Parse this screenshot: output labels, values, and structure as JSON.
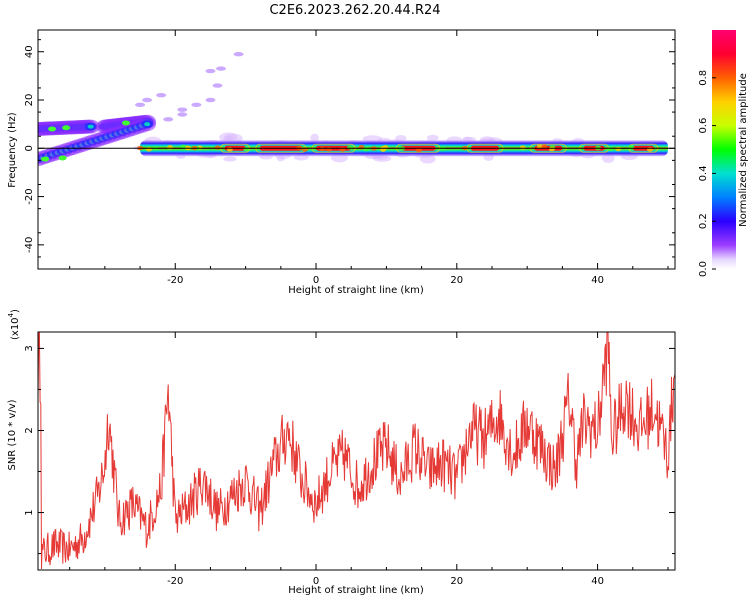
{
  "title": "C2E6.2023.262.20.44.R24",
  "colors": {
    "snr_line": "#e53935",
    "frame": "#000000"
  },
  "chart_data": [
    {
      "type": "heatmap",
      "xlabel": "Height of straight line (km)",
      "ylabel": "Frequency (Hz)",
      "xlim": [
        -39.5,
        51
      ],
      "ylim": [
        -50,
        49
      ],
      "xticks": [
        -20,
        0,
        20,
        40
      ],
      "yticks": [
        -40,
        -20,
        0,
        20,
        40
      ],
      "grid": false,
      "zero_line": 0,
      "colorbar": {
        "label": "Normalized spectral amplitude",
        "range": [
          0.0,
          1.0
        ],
        "ticks": [
          "0.0",
          "0.2",
          "0.4",
          "0.6",
          "0.8"
        ],
        "tick_values": [
          0.0,
          0.2,
          0.4,
          0.6,
          0.8
        ],
        "colormap": "rainbow"
      },
      "features": [
        {
          "name": "main-band",
          "x": [
            -25,
            50
          ],
          "freq": 0,
          "amplitude": 0.9
        },
        {
          "name": "upper-branch",
          "x": [
            -39.5,
            -24
          ],
          "freq": [
            7,
            11
          ],
          "amplitude": 0.45
        },
        {
          "name": "lower-branch",
          "x": [
            -39.5,
            -24
          ],
          "freq": [
            -5,
            10
          ],
          "amplitude": 0.45
        },
        {
          "name": "faint-streak",
          "x": [
            -22,
            -14
          ],
          "freq": [
            20,
            35
          ],
          "amplitude": 0.1
        }
      ]
    },
    {
      "type": "line",
      "xlabel": "Height of straight line (km)",
      "ylabel": "SNR (10 * v/v)",
      "y_multiplier": "(x10",
      "y_multiplier_exp": "4",
      "y_multiplier_close": ")",
      "xlim": [
        -39.5,
        51
      ],
      "ylim": [
        0.3,
        3.2
      ],
      "xticks": [
        -20,
        0,
        20,
        40
      ],
      "yticks": [
        1,
        2,
        3
      ],
      "grid": false,
      "series": [
        {
          "x": [
            -39,
            -37,
            -35,
            -33,
            -31,
            -30,
            -29.5,
            -28,
            -26,
            -24,
            -22,
            -21,
            -20,
            -18,
            -16,
            -14,
            -12,
            -10,
            -8,
            -6,
            -4,
            -2,
            0,
            2,
            4,
            6,
            8,
            10,
            12,
            14,
            16,
            18,
            20,
            22,
            24,
            26,
            28,
            30,
            32,
            34,
            36,
            37,
            38,
            40,
            41.5,
            42,
            44,
            46,
            48,
            50,
            51
          ],
          "y": [
            0.5,
            0.6,
            0.55,
            0.7,
            1.2,
            1.6,
            2.2,
            0.9,
            1.1,
            0.8,
            1.3,
            2.5,
            0.9,
            1.1,
            1.4,
            1.0,
            1.2,
            1.4,
            1.0,
            1.6,
            2.0,
            1.4,
            1.1,
            1.5,
            1.7,
            1.3,
            1.6,
            1.8,
            1.4,
            1.8,
            1.5,
            1.6,
            1.4,
            2.0,
            1.9,
            2.2,
            1.7,
            2.1,
            1.8,
            1.5,
            2.4,
            1.6,
            2.1,
            2.0,
            3.1,
            1.9,
            2.4,
            2.0,
            2.3,
            1.7,
            2.8
          ]
        }
      ]
    }
  ]
}
